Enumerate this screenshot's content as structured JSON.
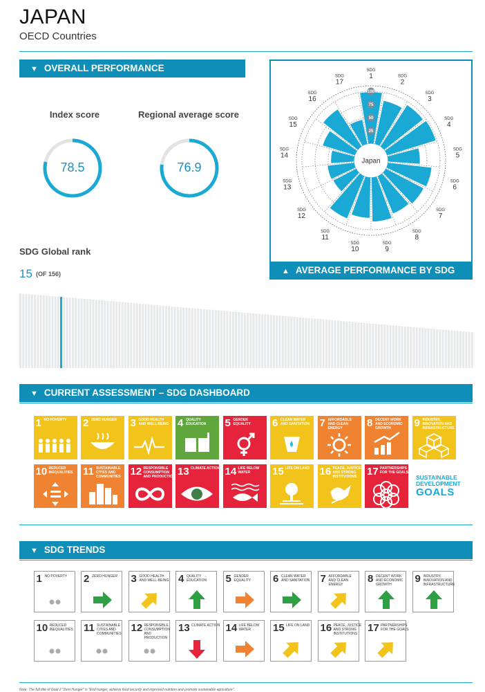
{
  "header": {
    "title": "JAPAN",
    "subtitle": "OECD Countries"
  },
  "overall": {
    "banner": "OVERALL PERFORMANCE",
    "index_label": "Index score",
    "index_value": "78.5",
    "index_fraction": 0.785,
    "regional_label": "Regional average score",
    "regional_value": "76.9",
    "regional_fraction": 0.769
  },
  "rank": {
    "title": "SDG Global rank",
    "value": "15",
    "of": "(OF 156)",
    "position": 15,
    "total": 156,
    "highlight_color": "#1aa8d4"
  },
  "chart_data": {
    "type": "polar-bar",
    "center_label": "Japan",
    "scale_labels": [
      "100",
      "75",
      "50",
      "25"
    ],
    "rmax": 100,
    "categories": [
      {
        "top": "SDG",
        "num": "1"
      },
      {
        "top": "SDG",
        "num": "2"
      },
      {
        "top": "SDG",
        "num": "3"
      },
      {
        "top": "SDG",
        "num": "4"
      },
      {
        "top": "SDG",
        "num": "5"
      },
      {
        "top": "SDG",
        "num": "6"
      },
      {
        "top": "SDG",
        "num": "7"
      },
      {
        "top": "SDG",
        "num": "8"
      },
      {
        "top": "SDG",
        "num": "9"
      },
      {
        "top": "SDG",
        "num": "10"
      },
      {
        "top": "SDG",
        "num": "11"
      },
      {
        "top": "SDG",
        "num": "12"
      },
      {
        "top": "SDG",
        "num": "13"
      },
      {
        "top": "SDG",
        "num": "14"
      },
      {
        "top": "SDG",
        "num": "15"
      },
      {
        "top": "SDG",
        "num": "16"
      },
      {
        "top": "SDG",
        "num": "17"
      }
    ],
    "values": [
      99,
      85,
      95,
      98,
      62,
      85,
      82,
      78,
      85,
      78,
      88,
      50,
      52,
      45,
      65,
      85,
      48
    ],
    "bar_color": "#1aa8d4",
    "grid": true
  },
  "avg_banner": "AVERAGE PERFORMANCE BY SDG",
  "dashboard": {
    "banner": "CURRENT ASSESSMENT – SDG DASHBOARD",
    "tiles": [
      {
        "num": "1",
        "label": "No poverty",
        "color": "#e5243b",
        "status": "#f2c31a",
        "icon": "people-icon"
      },
      {
        "num": "2",
        "label": "Zero hunger",
        "color": "#dda63a",
        "status": "#f2c31a",
        "icon": "bowl-icon"
      },
      {
        "num": "3",
        "label": "Good health and well-being",
        "color": "#4c9f38",
        "status": "#f2c31a",
        "icon": "heartbeat-icon"
      },
      {
        "num": "4",
        "label": "Quality education",
        "color": "#c5192d",
        "status": "#5fa63c",
        "icon": "book-icon"
      },
      {
        "num": "5",
        "label": "Gender equality",
        "color": "#ff3a21",
        "status": "#e5243b",
        "icon": "gender-icon"
      },
      {
        "num": "6",
        "label": "Clean water and sanitation",
        "color": "#26bde2",
        "status": "#f2c31a",
        "icon": "water-icon"
      },
      {
        "num": "7",
        "label": "Affordable and clean energy",
        "color": "#fcc30b",
        "status": "#ef8332",
        "icon": "sun-icon"
      },
      {
        "num": "8",
        "label": "Decent work and economic growth",
        "color": "#a21942",
        "status": "#ef8332",
        "icon": "chart-icon"
      },
      {
        "num": "9",
        "label": "Industry, innovation and infrastructure",
        "color": "#fd6925",
        "status": "#f2c31a",
        "icon": "cubes-icon"
      },
      {
        "num": "10",
        "label": "Reduced inequalities",
        "color": "#dd1367",
        "status": "#ef8332",
        "icon": "equality-icon"
      },
      {
        "num": "11",
        "label": "Sustainable cities and communities",
        "color": "#fd9d24",
        "status": "#ef8332",
        "icon": "city-icon"
      },
      {
        "num": "12",
        "label": "Responsible consumption and production",
        "color": "#bf8b2e",
        "status": "#e5243b",
        "icon": "infinity-icon"
      },
      {
        "num": "13",
        "label": "Climate action",
        "color": "#3f7e44",
        "status": "#e5243b",
        "icon": "eye-icon"
      },
      {
        "num": "14",
        "label": "Life below water",
        "color": "#0a97d9",
        "status": "#e5243b",
        "icon": "fish-icon"
      },
      {
        "num": "15",
        "label": "Life on land",
        "color": "#56c02b",
        "status": "#f2c31a",
        "icon": "tree-icon"
      },
      {
        "num": "16",
        "label": "Peace, justice and strong institutions",
        "color": "#00689d",
        "status": "#f2c31a",
        "icon": "dove-icon"
      },
      {
        "num": "17",
        "label": "Partnerships for the goals",
        "color": "#19486a",
        "status": "#e5243b",
        "icon": "rings-icon"
      }
    ],
    "logo": {
      "line1": "SUSTAINABLE",
      "line2": "DEVELOPMENT",
      "line3": "GOALS"
    }
  },
  "trends": {
    "banner": "SDG TRENDS",
    "tiles": [
      {
        "num": "1",
        "label": "No poverty",
        "trend": "dots",
        "color": "#aaaaaa"
      },
      {
        "num": "2",
        "label": "Zero hunger",
        "trend": "right",
        "color": "#2ea043"
      },
      {
        "num": "3",
        "label": "Good health and well-being",
        "trend": "up-right",
        "color": "#f2c31a"
      },
      {
        "num": "4",
        "label": "Quality education",
        "trend": "up",
        "color": "#2ea043"
      },
      {
        "num": "5",
        "label": "Gender equality",
        "trend": "right",
        "color": "#ef8332"
      },
      {
        "num": "6",
        "label": "Clean water and sanitation",
        "trend": "right",
        "color": "#2ea043"
      },
      {
        "num": "7",
        "label": "Affordable and clean energy",
        "trend": "up-right",
        "color": "#f2c31a"
      },
      {
        "num": "8",
        "label": "Decent work and economic growth",
        "trend": "up",
        "color": "#2ea043"
      },
      {
        "num": "9",
        "label": "Industry, innovation and infrastructure",
        "trend": "up",
        "color": "#2ea043"
      },
      {
        "num": "10",
        "label": "Reduced inequalities",
        "trend": "dots",
        "color": "#aaaaaa"
      },
      {
        "num": "11",
        "label": "Sustainable cities and communities",
        "trend": "dots",
        "color": "#aaaaaa"
      },
      {
        "num": "12",
        "label": "Responsible consumption and production",
        "trend": "dots",
        "color": "#aaaaaa"
      },
      {
        "num": "13",
        "label": "Climate action",
        "trend": "down",
        "color": "#e5243b"
      },
      {
        "num": "14",
        "label": "Life below water",
        "trend": "right",
        "color": "#ef8332"
      },
      {
        "num": "15",
        "label": "Life on land",
        "trend": "up-right",
        "color": "#f2c31a"
      },
      {
        "num": "16",
        "label": "Peace, justice and strong institutions",
        "trend": "up-right",
        "color": "#f2c31a"
      },
      {
        "num": "17",
        "label": "Partnerships for the goals",
        "trend": "up-right",
        "color": "#f2c31a"
      }
    ]
  },
  "note": "Note: The full title of Goal 2 \"Zero Hunger\" is \"End hunger, achieve food security and improved nutrition and promote sustainable agriculture\"."
}
